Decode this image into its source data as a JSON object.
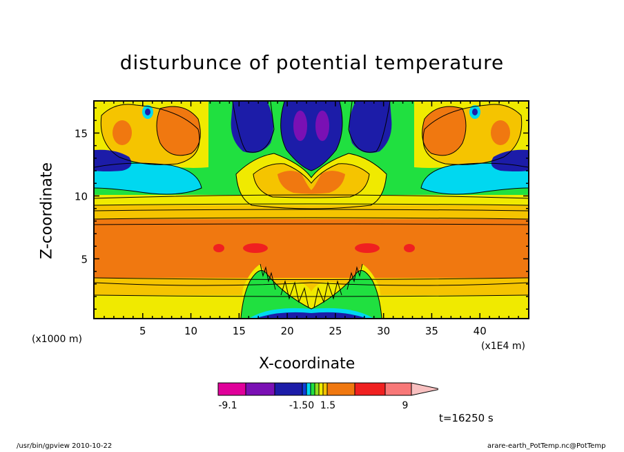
{
  "title": "disturbunce of potential temperature",
  "chart_data": {
    "type": "heatmap",
    "title": "disturbunce of potential temperature",
    "xlabel": "X-coordinate",
    "ylabel": "Z-coordinate",
    "x_unit": "(x1E4 m)",
    "y_unit": "(x1000 m)",
    "xlim": [
      0,
      45
    ],
    "ylim": [
      0.3,
      17.5
    ],
    "xticks": [
      "5",
      "10",
      "15",
      "20",
      "25",
      "30",
      "35",
      "40"
    ],
    "yticks": [
      "5",
      "10",
      "15"
    ],
    "colorbar": {
      "tick_labels": [
        "-9.1",
        "-1.50",
        "1.5",
        "9"
      ],
      "colors": [
        "#e0009a",
        "#7a10b4",
        "#1c1ca8",
        "#1040d8",
        "#00d8f0",
        "#20e040",
        "#90e020",
        "#f0ea00",
        "#f5c400",
        "#f07810",
        "#f02020",
        "#f87878",
        "#f8c0c0"
      ]
    },
    "time": "t=16250 s"
  },
  "footer_left": "/usr/bin/gpview   2010-10-22",
  "footer_right": "arare-earth_PotTemp.nc@PotTemp"
}
